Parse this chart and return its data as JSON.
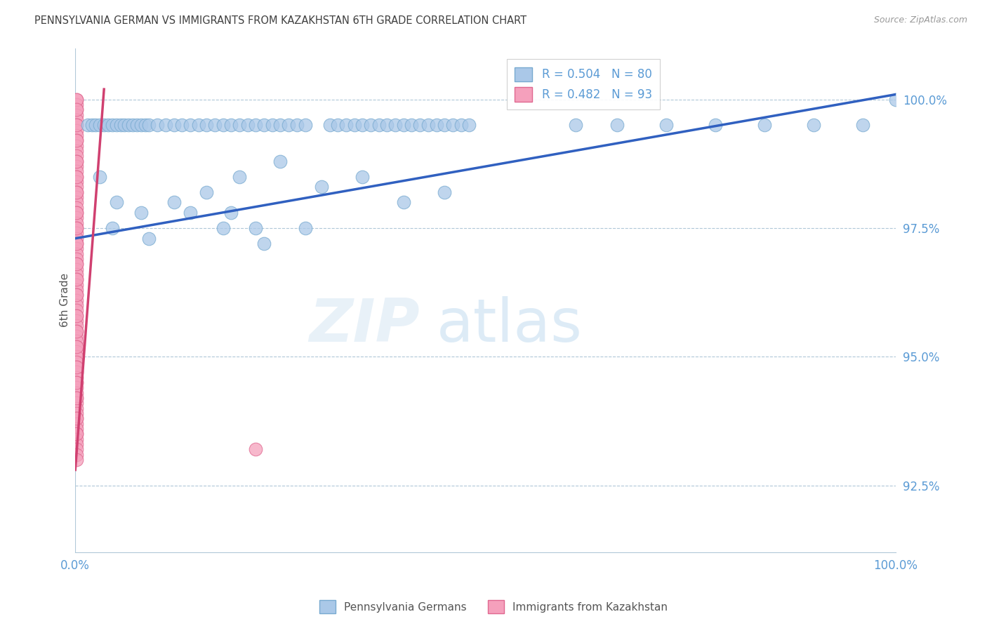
{
  "title": "PENNSYLVANIA GERMAN VS IMMIGRANTS FROM KAZAKHSTAN 6TH GRADE CORRELATION CHART",
  "source": "Source: ZipAtlas.com",
  "ylabel": "6th Grade",
  "ytick_values": [
    92.5,
    95.0,
    97.5,
    100.0
  ],
  "xlim": [
    0.0,
    100.0
  ],
  "ylim": [
    91.2,
    101.0
  ],
  "legend_blue_label": "R = 0.504   N = 80",
  "legend_pink_label": "R = 0.482   N = 93",
  "watermark_zip": "ZIP",
  "watermark_atlas": "atlas",
  "blue_color": "#aac8e8",
  "blue_edge_color": "#78aad0",
  "pink_color": "#f5a0bc",
  "pink_edge_color": "#e06890",
  "trendline_blue": "#3060c0",
  "trendline_pink": "#d04070",
  "axis_color": "#5b9bd5",
  "grid_color": "#b0c8d8",
  "title_color": "#404040",
  "blue_trend_x": [
    0.0,
    100.0
  ],
  "blue_trend_y": [
    97.3,
    100.1
  ],
  "pink_trend_x": [
    0.0,
    3.5
  ],
  "pink_trend_y": [
    92.8,
    100.2
  ],
  "blue_x": [
    1.5,
    2.0,
    2.5,
    3.0,
    3.5,
    4.0,
    4.5,
    5.0,
    5.5,
    6.0,
    6.5,
    7.0,
    7.5,
    8.0,
    8.5,
    9.0,
    10.0,
    11.0,
    12.0,
    13.0,
    14.0,
    15.0,
    16.0,
    17.0,
    18.0,
    19.0,
    20.0,
    21.0,
    22.0,
    23.0,
    24.0,
    25.0,
    26.0,
    27.0,
    28.0,
    31.0,
    32.0,
    33.0,
    34.0,
    35.0,
    36.0,
    37.0,
    38.0,
    39.0,
    40.0,
    41.0,
    42.0,
    43.0,
    44.0,
    45.0,
    46.0,
    47.0,
    48.0,
    61.0,
    66.0,
    72.0,
    78.0,
    84.0,
    90.0,
    96.0,
    100.0,
    3.0,
    5.0,
    8.0,
    12.0,
    16.0,
    20.0,
    25.0,
    30.0,
    35.0,
    40.0,
    45.0,
    22.0,
    19.0,
    4.5,
    9.0,
    14.0,
    18.0,
    23.0,
    28.0
  ],
  "blue_y": [
    99.5,
    99.5,
    99.5,
    99.5,
    99.5,
    99.5,
    99.5,
    99.5,
    99.5,
    99.5,
    99.5,
    99.5,
    99.5,
    99.5,
    99.5,
    99.5,
    99.5,
    99.5,
    99.5,
    99.5,
    99.5,
    99.5,
    99.5,
    99.5,
    99.5,
    99.5,
    99.5,
    99.5,
    99.5,
    99.5,
    99.5,
    99.5,
    99.5,
    99.5,
    99.5,
    99.5,
    99.5,
    99.5,
    99.5,
    99.5,
    99.5,
    99.5,
    99.5,
    99.5,
    99.5,
    99.5,
    99.5,
    99.5,
    99.5,
    99.5,
    99.5,
    99.5,
    99.5,
    99.5,
    99.5,
    99.5,
    99.5,
    99.5,
    99.5,
    99.5,
    100.0,
    98.5,
    98.0,
    97.8,
    98.0,
    98.2,
    98.5,
    98.8,
    98.3,
    98.5,
    98.0,
    98.2,
    97.5,
    97.8,
    97.5,
    97.3,
    97.8,
    97.5,
    97.2,
    97.5
  ],
  "pink_x": [
    0.15,
    0.15,
    0.15,
    0.15,
    0.15,
    0.15,
    0.15,
    0.15,
    0.15,
    0.15,
    0.15,
    0.15,
    0.15,
    0.15,
    0.15,
    0.15,
    0.15,
    0.15,
    0.15,
    0.15,
    0.15,
    0.15,
    0.15,
    0.15,
    0.15,
    0.15,
    0.15,
    0.15,
    0.15,
    0.15,
    0.15,
    0.15,
    0.15,
    0.15,
    0.15,
    0.15,
    0.15,
    0.15,
    0.15,
    0.15,
    0.15,
    0.15,
    0.15,
    0.15,
    0.15,
    0.15,
    0.15,
    0.15,
    0.15,
    0.15,
    0.15,
    0.15,
    0.15,
    0.15,
    0.15,
    0.15,
    0.15,
    0.15,
    0.15,
    0.15,
    0.15,
    0.15,
    0.15,
    0.15,
    0.15,
    0.15,
    0.15,
    0.15,
    0.15,
    0.15,
    0.15,
    0.15,
    0.15,
    0.15,
    0.15,
    0.15,
    0.15,
    0.15,
    0.15,
    0.15,
    0.15,
    0.15,
    0.15,
    0.15,
    0.15,
    0.15,
    0.15,
    0.15,
    0.15,
    0.15,
    0.15,
    0.15,
    22.0
  ],
  "pink_y": [
    100.0,
    99.9,
    99.8,
    99.7,
    99.6,
    99.5,
    99.4,
    99.3,
    99.2,
    99.1,
    99.0,
    98.9,
    98.8,
    98.7,
    98.6,
    98.5,
    98.4,
    98.3,
    98.2,
    98.1,
    98.0,
    97.9,
    97.8,
    97.7,
    97.6,
    97.5,
    97.4,
    97.3,
    97.2,
    97.1,
    97.0,
    96.9,
    96.8,
    96.7,
    96.6,
    96.5,
    96.4,
    96.3,
    96.2,
    96.1,
    96.0,
    95.9,
    95.8,
    95.7,
    95.6,
    95.5,
    95.4,
    95.3,
    95.2,
    95.1,
    95.0,
    94.9,
    94.8,
    94.7,
    94.6,
    94.5,
    94.4,
    94.3,
    94.2,
    94.1,
    94.0,
    93.9,
    93.8,
    93.7,
    93.6,
    93.5,
    93.4,
    93.3,
    93.2,
    93.1,
    93.0,
    100.0,
    99.8,
    99.5,
    99.2,
    98.8,
    98.5,
    98.2,
    97.8,
    97.5,
    97.2,
    96.8,
    96.5,
    96.2,
    95.8,
    95.5,
    95.2,
    94.8,
    94.5,
    94.2,
    93.8,
    93.5,
    93.2
  ]
}
